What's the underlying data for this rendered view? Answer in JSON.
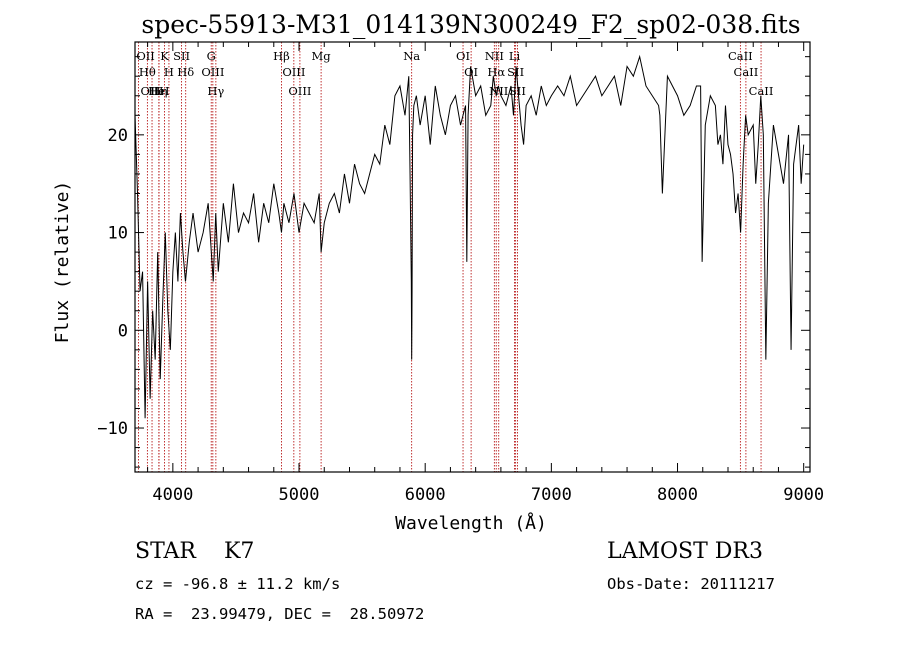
{
  "chart_data": {
    "type": "line",
    "title": "spec-55913-M31_014139N300249_F2_sp02-038.fits",
    "xlabel": "Wavelength (Å)",
    "ylabel": "Flux (relative)",
    "xlim": [
      3700,
      9050
    ],
    "ylim": [
      -14.5,
      29.5
    ],
    "x_ticks": [
      4000,
      5000,
      6000,
      7000,
      8000,
      9000
    ],
    "x_tick_labels": [
      "4000",
      "5000",
      "6000",
      "7000",
      "8000",
      "9000"
    ],
    "y_ticks": [
      -10,
      0,
      10,
      20
    ],
    "y_tick_labels": [
      "−10",
      "0",
      "10",
      "20"
    ],
    "x_minor_step": 200,
    "y_minor_step": 2,
    "series": [
      {
        "name": "spectrum",
        "x": [
          3700,
          3720,
          3740,
          3760,
          3780,
          3800,
          3820,
          3840,
          3860,
          3880,
          3900,
          3920,
          3940,
          3960,
          3980,
          4000,
          4020,
          4040,
          4060,
          4080,
          4100,
          4130,
          4160,
          4200,
          4240,
          4280,
          4320,
          4340,
          4360,
          4400,
          4440,
          4480,
          4520,
          4560,
          4600,
          4640,
          4680,
          4720,
          4760,
          4800,
          4840,
          4861,
          4880,
          4920,
          4960,
          5000,
          5040,
          5080,
          5120,
          5160,
          5175,
          5200,
          5240,
          5280,
          5320,
          5360,
          5400,
          5440,
          5480,
          5520,
          5560,
          5600,
          5640,
          5680,
          5720,
          5760,
          5800,
          5840,
          5870,
          5880,
          5890,
          5893,
          5896,
          5900,
          5910,
          5930,
          5960,
          6000,
          6040,
          6080,
          6120,
          6160,
          6200,
          6240,
          6280,
          6300,
          6320,
          6330,
          6340,
          6360,
          6400,
          6440,
          6480,
          6520,
          6540,
          6563,
          6580,
          6600,
          6640,
          6680,
          6700,
          6720,
          6740,
          6760,
          6780,
          6800,
          6840,
          6880,
          6920,
          6960,
          7000,
          7050,
          7100,
          7150,
          7200,
          7250,
          7300,
          7350,
          7400,
          7450,
          7500,
          7550,
          7600,
          7650,
          7700,
          7750,
          7800,
          7850,
          7860,
          7880,
          7920,
          7960,
          8000,
          8050,
          8100,
          8150,
          8183,
          8195,
          8220,
          8260,
          8300,
          8320,
          8340,
          8360,
          8380,
          8400,
          8420,
          8440,
          8460,
          8480,
          8500,
          8520,
          8540,
          8560,
          8600,
          8620,
          8640,
          8660,
          8680,
          8700,
          8720,
          8760,
          8800,
          8840,
          8880,
          8900,
          8920,
          8940,
          8960,
          8980,
          9000
        ],
        "values": [
          22,
          14,
          4,
          6,
          -9,
          5,
          -7,
          2,
          -3,
          8,
          -5,
          3,
          10,
          2,
          -2,
          6,
          10,
          5,
          12,
          8,
          5,
          9,
          12,
          8,
          10,
          13,
          5,
          12,
          6,
          13,
          9,
          15,
          10,
          12,
          11,
          14,
          9,
          13,
          11,
          15,
          12,
          10,
          13,
          11,
          14,
          10,
          13,
          12,
          11,
          14,
          8,
          11,
          13,
          14,
          12,
          16,
          13,
          17,
          15,
          14,
          16,
          18,
          17,
          21,
          19,
          24,
          25,
          22,
          26,
          16,
          5,
          -3,
          4,
          20,
          23,
          24,
          21,
          24,
          19,
          25,
          22,
          20,
          23,
          24,
          21,
          22,
          23,
          7,
          22,
          27,
          24,
          25,
          22,
          23,
          26,
          24,
          25,
          24,
          23,
          25,
          22,
          27,
          24,
          21,
          19,
          23,
          24,
          22,
          25,
          23,
          24,
          25,
          24,
          26,
          23,
          24,
          25,
          26,
          24,
          25,
          26,
          23,
          27,
          26,
          28,
          25,
          24,
          23,
          22,
          14,
          26,
          25,
          24,
          22,
          23,
          25,
          25,
          7,
          21,
          24,
          23,
          19,
          20,
          17,
          23,
          19,
          18,
          16,
          12,
          14,
          10,
          17,
          22,
          20,
          21,
          15,
          19,
          24,
          20,
          -3,
          13,
          21,
          18,
          15,
          20,
          -2,
          17,
          19,
          21,
          15,
          19
        ]
      }
    ],
    "spectral_lines": [
      {
        "label": "OII",
        "x": 3727
      },
      {
        "label": "Hθ",
        "x": 3798
      },
      {
        "label": "OIII",
        "x": 3835
      },
      {
        "label": "Hη",
        "x": 3890
      },
      {
        "label": "HeI",
        "x": 3889
      },
      {
        "label": "K",
        "x": 3934
      },
      {
        "label": "H",
        "x": 3969
      },
      {
        "label": "SII",
        "x": 4069
      },
      {
        "label": "Hδ",
        "x": 4102
      },
      {
        "label": "OIII",
        "x": 4317
      },
      {
        "label": "Hγ",
        "x": 4341
      },
      {
        "label": "G",
        "x": 4304
      },
      {
        "label": "OIII",
        "x": 4959
      },
      {
        "label": "OIII",
        "x": 5007
      },
      {
        "label": "Hβ",
        "x": 4861
      },
      {
        "label": "Mg",
        "x": 5175
      },
      {
        "label": "Na",
        "x": 5893
      },
      {
        "label": "OI",
        "x": 6300
      },
      {
        "label": "OI",
        "x": 6364
      },
      {
        "label": "Hα",
        "x": 6563
      },
      {
        "label": "NII",
        "x": 6548
      },
      {
        "label": "NII",
        "x": 6583
      },
      {
        "label": "SII",
        "x": 6717
      },
      {
        "label": "SII",
        "x": 6731
      },
      {
        "label": "Li",
        "x": 6708
      },
      {
        "label": "CaII",
        "x": 8498
      },
      {
        "label": "CaII",
        "x": 8542
      },
      {
        "label": "CaII",
        "x": 8662
      }
    ],
    "colors": {
      "spectrum": "#000000",
      "lines": "#b00000",
      "axes": "#000000"
    }
  },
  "info": {
    "classification": "STAR    K7",
    "survey": "LAMOST DR3",
    "redshift": "cz = -96.8 ± 11.2 km/s",
    "obs_date": "Obs-Date: 20111217",
    "coords": "RA =  23.99479, DEC =  28.50972"
  }
}
